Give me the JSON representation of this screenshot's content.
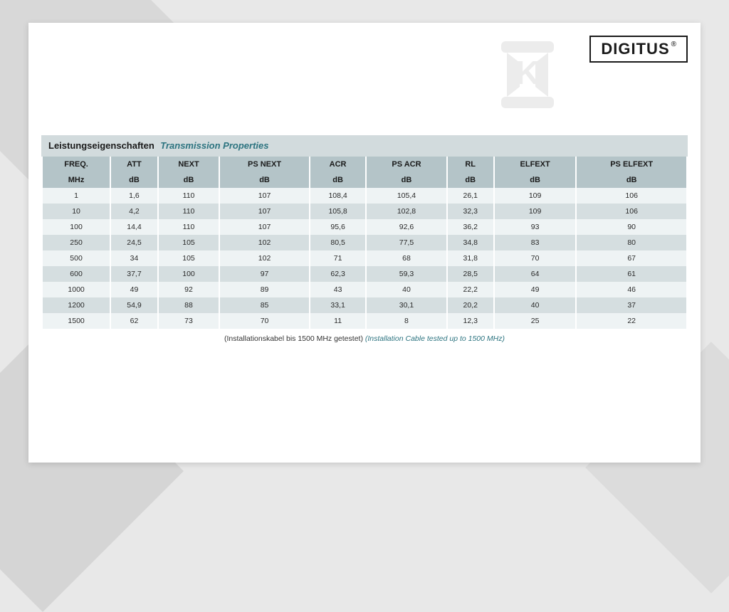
{
  "brand": {
    "name": "DIGITUS",
    "registered": "®"
  },
  "table": {
    "title_de": "Leistungseigenschaften",
    "title_en": "Transmission Properties",
    "columns": [
      "FREQ.",
      "ATT",
      "NEXT",
      "PS NEXT",
      "ACR",
      "PS ACR",
      "RL",
      "ELFEXT",
      "PS ELFEXT"
    ],
    "units": [
      "MHz",
      "dB",
      "dB",
      "dB",
      "dB",
      "dB",
      "dB",
      "dB",
      "dB"
    ],
    "rows": [
      [
        "1",
        "1,6",
        "110",
        "107",
        "108,4",
        "105,4",
        "26,1",
        "109",
        "106"
      ],
      [
        "10",
        "4,2",
        "110",
        "107",
        "105,8",
        "102,8",
        "32,3",
        "109",
        "106"
      ],
      [
        "100",
        "14,4",
        "110",
        "107",
        "95,6",
        "92,6",
        "36,2",
        "93",
        "90"
      ],
      [
        "250",
        "24,5",
        "105",
        "102",
        "80,5",
        "77,5",
        "34,8",
        "83",
        "80"
      ],
      [
        "500",
        "34",
        "105",
        "102",
        "71",
        "68",
        "31,8",
        "70",
        "67"
      ],
      [
        "600",
        "37,7",
        "100",
        "97",
        "62,3",
        "59,3",
        "28,5",
        "64",
        "61"
      ],
      [
        "1000",
        "49",
        "92",
        "89",
        "43",
        "40",
        "22,2",
        "49",
        "46"
      ],
      [
        "1200",
        "54,9",
        "88",
        "85",
        "33,1",
        "30,1",
        "20,2",
        "40",
        "37"
      ],
      [
        "1500",
        "62",
        "73",
        "70",
        "11",
        "8",
        "12,3",
        "25",
        "22"
      ]
    ],
    "footnote_de": "(Installationskabel bis 1500 MHz getestet)",
    "footnote_en": "(Installation Cable tested up to 1500 MHz)",
    "colors": {
      "title_bg": "#d2dbdd",
      "header_bg": "#b4c4c8",
      "row_even_bg": "#eef3f4",
      "row_odd_bg": "#d5dee0",
      "accent_text": "#2d7480"
    }
  }
}
